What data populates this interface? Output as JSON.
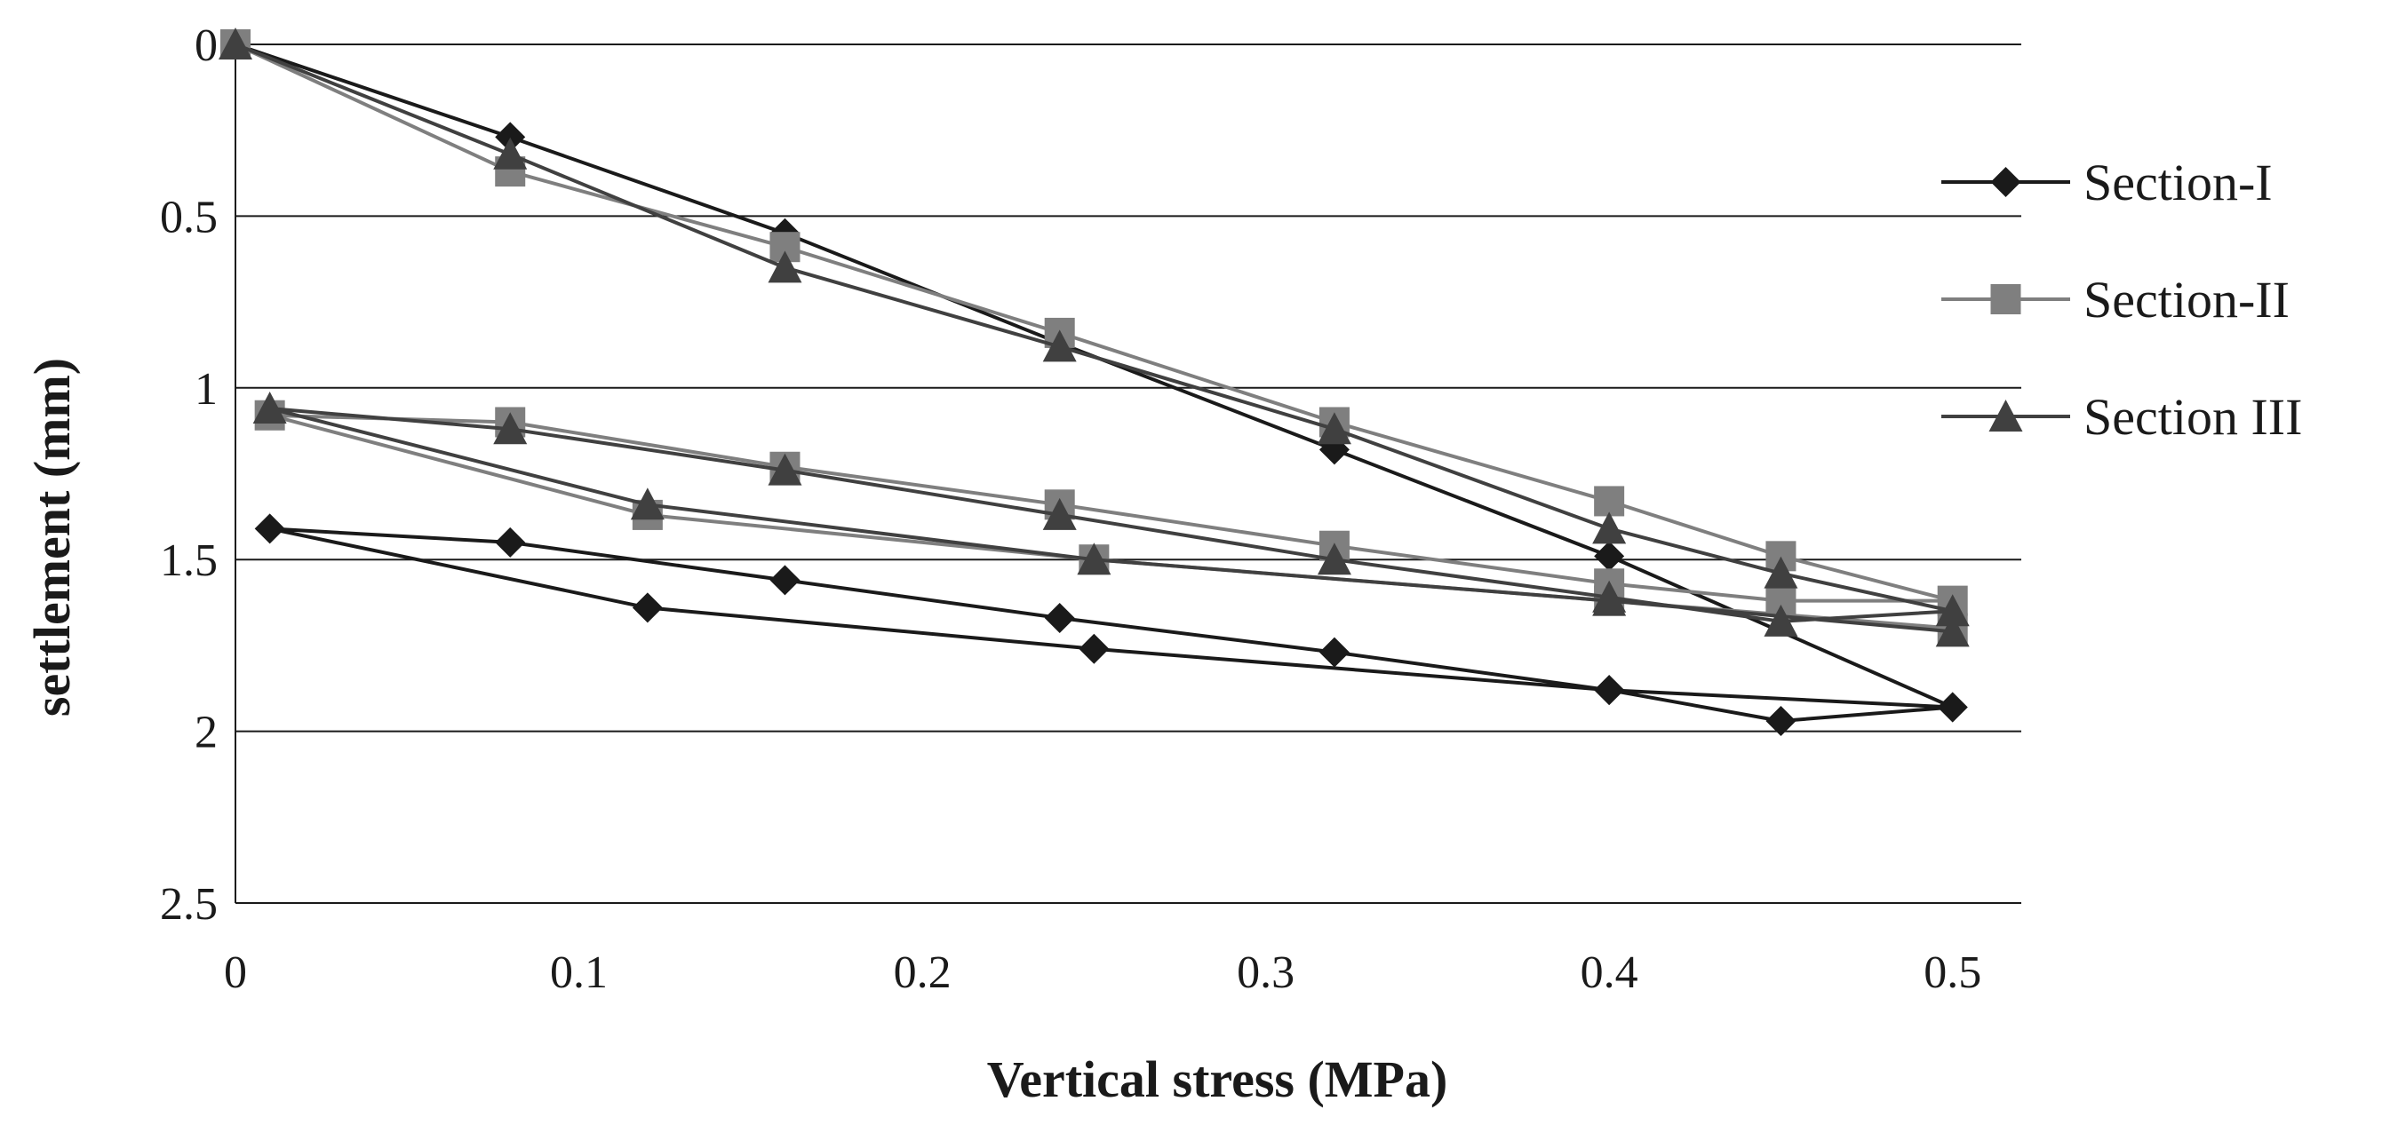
{
  "chart_data": {
    "type": "line",
    "title": "",
    "xlabel": "Vertical stress (MPa)",
    "ylabel": "settlement (mm)",
    "xlim": [
      0,
      0.52
    ],
    "ylim": [
      0,
      2.5
    ],
    "y_inverted": true,
    "x_ticks": [
      {
        "value": 0,
        "label": "0"
      },
      {
        "value": 0.1,
        "label": "0.1"
      },
      {
        "value": 0.2,
        "label": "0.2"
      },
      {
        "value": 0.3,
        "label": "0.3"
      },
      {
        "value": 0.4,
        "label": "0.4"
      },
      {
        "value": 0.5,
        "label": "0.5"
      }
    ],
    "y_ticks": [
      {
        "value": 0,
        "label": "0"
      },
      {
        "value": 0.5,
        "label": "0.5"
      },
      {
        "value": 1,
        "label": "1"
      },
      {
        "value": 1.5,
        "label": "1.5"
      },
      {
        "value": 2,
        "label": "2"
      },
      {
        "value": 2.5,
        "label": "2.5"
      }
    ],
    "grid": "horizontal",
    "legend_position": "right",
    "series": [
      {
        "name": "Section-I",
        "marker": "diamond",
        "color": "#1a1a1a",
        "points": [
          [
            0,
            0
          ],
          [
            0.08,
            0.27
          ],
          [
            0.16,
            0.55
          ],
          [
            0.24,
            0.87
          ],
          [
            0.32,
            1.18
          ],
          [
            0.4,
            1.49
          ],
          [
            0.5,
            1.93
          ],
          [
            0.45,
            1.97
          ],
          [
            0.4,
            1.88
          ],
          [
            0.32,
            1.77
          ],
          [
            0.24,
            1.67
          ],
          [
            0.16,
            1.56
          ],
          [
            0.08,
            1.45
          ],
          [
            0.01,
            1.41
          ],
          [
            0.12,
            1.64
          ],
          [
            0.25,
            1.76
          ],
          [
            0.4,
            1.88
          ],
          [
            0.5,
            1.93
          ]
        ]
      },
      {
        "name": "Section-II",
        "marker": "square",
        "color": "#7f7f7f",
        "points": [
          [
            0,
            0
          ],
          [
            0.08,
            0.37
          ],
          [
            0.16,
            0.59
          ],
          [
            0.24,
            0.84
          ],
          [
            0.32,
            1.1
          ],
          [
            0.4,
            1.33
          ],
          [
            0.45,
            1.49
          ],
          [
            0.5,
            1.62
          ],
          [
            0.45,
            1.62
          ],
          [
            0.4,
            1.57
          ],
          [
            0.32,
            1.46
          ],
          [
            0.24,
            1.34
          ],
          [
            0.16,
            1.23
          ],
          [
            0.08,
            1.1
          ],
          [
            0.01,
            1.08
          ],
          [
            0.12,
            1.37
          ],
          [
            0.25,
            1.5
          ],
          [
            0.4,
            1.62
          ],
          [
            0.5,
            1.7
          ]
        ]
      },
      {
        "name": "Section III",
        "marker": "triangle",
        "color": "#404040",
        "points": [
          [
            0,
            0
          ],
          [
            0.08,
            0.32
          ],
          [
            0.16,
            0.65
          ],
          [
            0.24,
            0.88
          ],
          [
            0.32,
            1.12
          ],
          [
            0.4,
            1.41
          ],
          [
            0.45,
            1.54
          ],
          [
            0.5,
            1.65
          ],
          [
            0.45,
            1.68
          ],
          [
            0.4,
            1.61
          ],
          [
            0.32,
            1.5
          ],
          [
            0.24,
            1.37
          ],
          [
            0.16,
            1.24
          ],
          [
            0.08,
            1.12
          ],
          [
            0.01,
            1.06
          ],
          [
            0.12,
            1.34
          ],
          [
            0.25,
            1.5
          ],
          [
            0.4,
            1.62
          ],
          [
            0.5,
            1.71
          ]
        ]
      }
    ]
  }
}
